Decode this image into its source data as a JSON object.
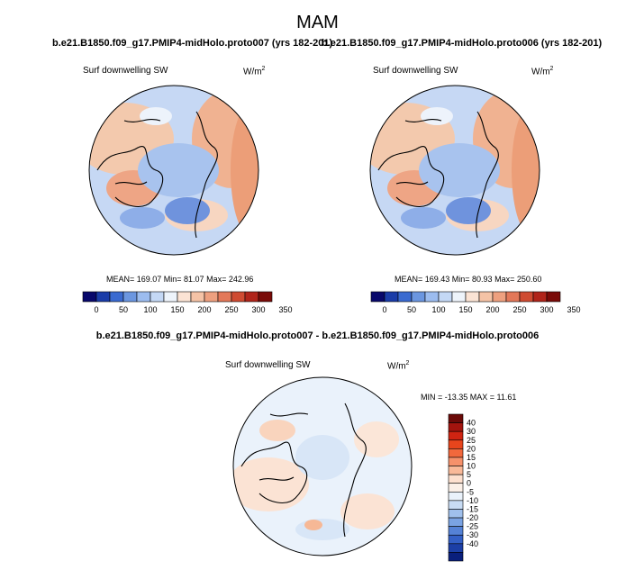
{
  "title": "MAM",
  "panels": [
    {
      "case": "b.e21.B1850.f09_g17.PMIP4-midHolo.proto007 (yrs 182-201)",
      "variable": "Surf downwelling SW",
      "units_base": "W/m",
      "units_exp": "2",
      "stats": "MEAN= 169.07   Min=  81.07  Max= 242.96"
    },
    {
      "case": "b.e21.B1850.f09_g17.PMIP4-midHolo.proto006 (yrs 182-201)",
      "variable": "Surf downwelling SW",
      "units_base": "W/m",
      "units_exp": "2",
      "stats": "MEAN= 169.43   Min=  80.93  Max= 250.60"
    }
  ],
  "diff": {
    "case": "b.e21.B1850.f09_g17.PMIP4-midHolo.proto007 - b.e21.B1850.f09_g17.PMIP4-midHolo.proto006",
    "variable": "Surf downwelling SW",
    "units_base": "W/m",
    "units_exp": "2",
    "stats": "MIN = -13.35 MAX =  11.61"
  },
  "colorbar_abs": {
    "colors": [
      "#08086b",
      "#1a3ca8",
      "#3a6ad0",
      "#6b96e0",
      "#9cbcef",
      "#c4d8f5",
      "#eef4fb",
      "#fbe3d4",
      "#f5c3a6",
      "#eea07f",
      "#e37859",
      "#cf4b32",
      "#b0241a",
      "#7a0b08"
    ],
    "labels": [
      "0",
      "50",
      "100",
      "150",
      "200",
      "250",
      "300",
      "350"
    ]
  },
  "colorbar_diff": {
    "colors": [
      "#6b0a08",
      "#a3140e",
      "#cf2412",
      "#e8451c",
      "#f2683c",
      "#f6916b",
      "#f9b999",
      "#fde0cf",
      "#fbf0e8",
      "#eaf2fb",
      "#c8dcf4",
      "#a0c0ec",
      "#7aa3e3",
      "#5582d6",
      "#3460c6",
      "#1c3fa6",
      "#0a1f7c"
    ],
    "labels": [
      "40",
      "30",
      "25",
      "20",
      "15",
      "10",
      "5",
      "0",
      "-5",
      "-10",
      "-15",
      "-20",
      "-25",
      "-30",
      "-40"
    ]
  }
}
